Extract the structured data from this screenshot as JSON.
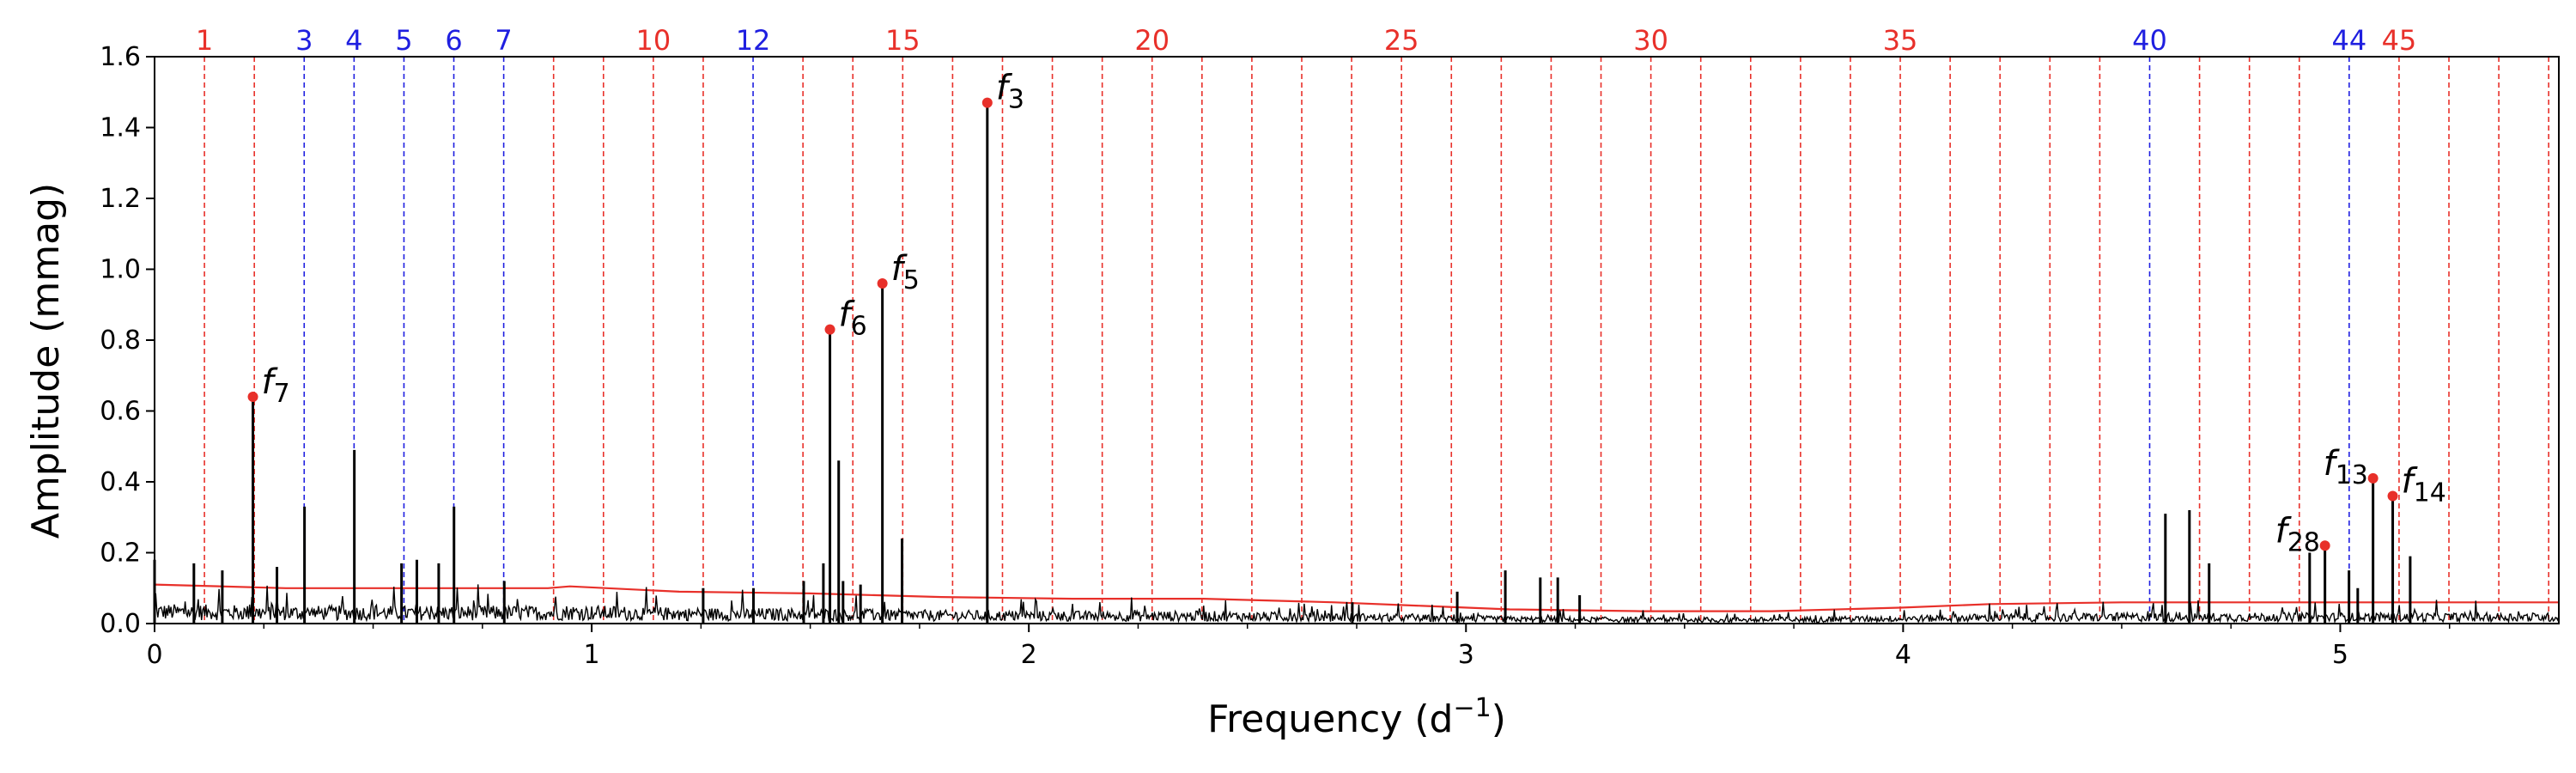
{
  "chart_data": {
    "type": "line",
    "xlabel": "Frequency",
    "xlabel_unit_base": "(d",
    "xlabel_unit_exp": "−1",
    "xlabel_unit_close": ")",
    "ylabel": "Amplitude (mmag)",
    "xlim": [
      0,
      5.5
    ],
    "ylim": [
      0,
      1.6
    ],
    "x_ticks": [
      0,
      1,
      2,
      3,
      4,
      5
    ],
    "y_ticks": [
      "0.0",
      "0.2",
      "0.4",
      "0.6",
      "0.8",
      "1.0",
      "1.2",
      "1.4",
      "1.6"
    ],
    "grid": false,
    "colors": {
      "spectrum": "#000000",
      "noise": "#e8302a",
      "harmonic_red": "#e8302a",
      "harmonic_blue": "#1f1fe0",
      "peak_marker": "#e8302a"
    },
    "harmonic_spacing": 0.1141,
    "harmonic_count": 48,
    "harmonics_highlighted_blue": [
      3,
      4,
      5,
      6,
      7,
      12,
      40,
      44
    ],
    "harmonic_labels": [
      {
        "n": 1,
        "text": "1",
        "color": "red"
      },
      {
        "n": 3,
        "text": "3",
        "color": "blue"
      },
      {
        "n": 4,
        "text": "4",
        "color": "blue"
      },
      {
        "n": 5,
        "text": "5",
        "color": "blue"
      },
      {
        "n": 6,
        "text": "6",
        "color": "blue"
      },
      {
        "n": 7,
        "text": "7",
        "color": "blue"
      },
      {
        "n": 10,
        "text": "10",
        "color": "red"
      },
      {
        "n": 12,
        "text": "12",
        "color": "blue"
      },
      {
        "n": 15,
        "text": "15",
        "color": "red"
      },
      {
        "n": 20,
        "text": "20",
        "color": "red"
      },
      {
        "n": 25,
        "text": "25",
        "color": "red"
      },
      {
        "n": 30,
        "text": "30",
        "color": "red"
      },
      {
        "n": 35,
        "text": "35",
        "color": "red"
      },
      {
        "n": 40,
        "text": "40",
        "color": "blue"
      },
      {
        "n": 44,
        "text": "44",
        "color": "blue"
      },
      {
        "n": 45,
        "text": "45",
        "color": "red"
      }
    ],
    "labeled_peaks": [
      {
        "name": "f",
        "sub": "7",
        "x": 0.225,
        "y": 0.64
      },
      {
        "name": "f",
        "sub": "6",
        "x": 1.545,
        "y": 0.83
      },
      {
        "name": "f",
        "sub": "5",
        "x": 1.665,
        "y": 0.96
      },
      {
        "name": "f",
        "sub": "3",
        "x": 1.905,
        "y": 1.47
      },
      {
        "name": "f",
        "sub": "28",
        "x": 4.965,
        "y": 0.22
      },
      {
        "name": "f",
        "sub": "13",
        "x": 5.075,
        "y": 0.41
      },
      {
        "name": "f",
        "sub": "14",
        "x": 5.12,
        "y": 0.36
      }
    ],
    "other_peaks": [
      {
        "x": 0.0,
        "y": 0.18
      },
      {
        "x": 0.09,
        "y": 0.17
      },
      {
        "x": 0.155,
        "y": 0.15
      },
      {
        "x": 0.28,
        "y": 0.16
      },
      {
        "x": 0.343,
        "y": 0.33
      },
      {
        "x": 0.457,
        "y": 0.49
      },
      {
        "x": 0.565,
        "y": 0.17
      },
      {
        "x": 0.6,
        "y": 0.18
      },
      {
        "x": 0.65,
        "y": 0.17
      },
      {
        "x": 0.685,
        "y": 0.33
      },
      {
        "x": 0.8,
        "y": 0.12
      },
      {
        "x": 1.255,
        "y": 0.1
      },
      {
        "x": 1.37,
        "y": 0.1
      },
      {
        "x": 1.485,
        "y": 0.12
      },
      {
        "x": 1.53,
        "y": 0.17
      },
      {
        "x": 1.565,
        "y": 0.46
      },
      {
        "x": 1.575,
        "y": 0.12
      },
      {
        "x": 1.615,
        "y": 0.11
      },
      {
        "x": 1.71,
        "y": 0.24
      },
      {
        "x": 2.74,
        "y": 0.06
      },
      {
        "x": 2.98,
        "y": 0.09
      },
      {
        "x": 3.09,
        "y": 0.15
      },
      {
        "x": 3.17,
        "y": 0.13
      },
      {
        "x": 3.21,
        "y": 0.13
      },
      {
        "x": 3.26,
        "y": 0.08
      },
      {
        "x": 4.6,
        "y": 0.31
      },
      {
        "x": 4.655,
        "y": 0.32
      },
      {
        "x": 4.7,
        "y": 0.17
      },
      {
        "x": 4.93,
        "y": 0.2
      },
      {
        "x": 5.02,
        "y": 0.15
      },
      {
        "x": 5.04,
        "y": 0.1
      },
      {
        "x": 5.16,
        "y": 0.19
      }
    ],
    "noise_level": [
      [
        0.0,
        0.11
      ],
      [
        0.3,
        0.1
      ],
      [
        0.6,
        0.1
      ],
      [
        0.9,
        0.1
      ],
      [
        0.95,
        0.105
      ],
      [
        1.2,
        0.09
      ],
      [
        1.5,
        0.085
      ],
      [
        1.8,
        0.075
      ],
      [
        2.1,
        0.07
      ],
      [
        2.4,
        0.07
      ],
      [
        2.7,
        0.06
      ],
      [
        2.9,
        0.05
      ],
      [
        3.1,
        0.04
      ],
      [
        3.4,
        0.035
      ],
      [
        3.7,
        0.035
      ],
      [
        4.0,
        0.045
      ],
      [
        4.2,
        0.055
      ],
      [
        4.5,
        0.06
      ],
      [
        4.8,
        0.06
      ],
      [
        5.1,
        0.06
      ],
      [
        5.5,
        0.06
      ]
    ]
  }
}
